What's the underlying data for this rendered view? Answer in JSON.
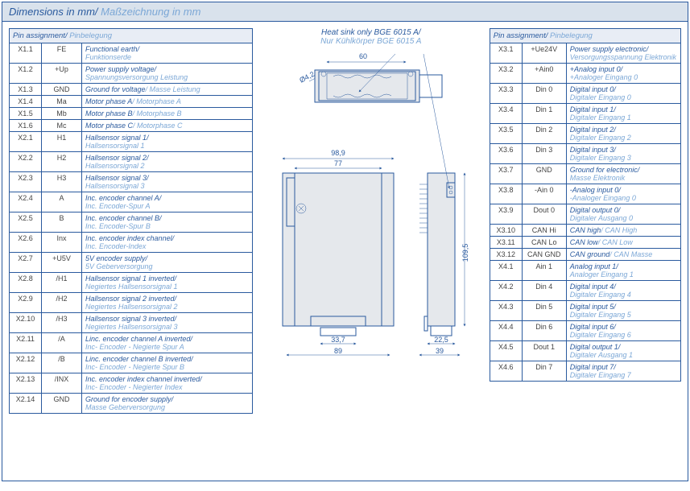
{
  "header": {
    "title_en": "Dimensions in mm",
    "title_de": "Maßzeichnung in mm"
  },
  "heatsink": {
    "en": "Heat sink only BGE 6015 A",
    "de": "Nur Kühlkörper BGE 6015 A"
  },
  "tableHeader": {
    "en": "Pin assignment",
    "de": "Pinbelegung"
  },
  "dimensions": {
    "top_width": "60",
    "top_dia": "Ø4,2",
    "front_width_outer": "98,9",
    "front_width_inner": "77",
    "front_bottom_inner": "33,7",
    "front_bottom_outer": "89",
    "side_height": "109,5",
    "side_width_inner": "22,5",
    "side_width_outer": "39"
  },
  "leftPins": [
    {
      "pin": "X1.1",
      "sig": "FE",
      "en": "Functional earth",
      "de": "Funktionserde"
    },
    {
      "pin": "X1.2",
      "sig": "+Up",
      "en": "Power supply voltage",
      "de": "Spannungsversorgung Leistung"
    },
    {
      "pin": "X1.3",
      "sig": "GND",
      "en": "Ground for voltage",
      "de": "Masse Leistung",
      "inline": true
    },
    {
      "pin": "X1.4",
      "sig": "Ma",
      "en": "Motor phase A",
      "de": "Motorphase A",
      "inline": true
    },
    {
      "pin": "X1.5",
      "sig": "Mb",
      "en": "Motor phase B",
      "de": "Motorphase B",
      "inline": true
    },
    {
      "pin": "X1.6",
      "sig": "Mc",
      "en": "Motor phase C",
      "de": "Motorphase C",
      "inline": true
    },
    {
      "pin": "X2.1",
      "sig": "H1",
      "en": "Hallsensor signal 1",
      "de": "Hallsensorsignal 1"
    },
    {
      "pin": "X2.2",
      "sig": "H2",
      "en": "Hallsensor signal 2",
      "de": "Hallsensorsignal 2"
    },
    {
      "pin": "X2.3",
      "sig": "H3",
      "en": "Hallsensor signal 3",
      "de": "Hallsensorsignal 3"
    },
    {
      "pin": "X2.4",
      "sig": "A",
      "en": "Inc. encoder channel A",
      "de": "Inc. Encoder-Spur A"
    },
    {
      "pin": "X2.5",
      "sig": "B",
      "en": "Inc. encoder channel B",
      "de": "Inc. Encoder-Spur B"
    },
    {
      "pin": "X2.6",
      "sig": "Inx",
      "en": "Inc. encoder index channel",
      "de": "Inc. Encoder-Index"
    },
    {
      "pin": "X2.7",
      "sig": "+U5V",
      "en": "5V encoder supply",
      "de": "5V Geberversorgung"
    },
    {
      "pin": "X2.8",
      "sig": "/H1",
      "en": "Hallsensor signal 1 inverted",
      "de": "Negiertes Hallsensorsignal 1"
    },
    {
      "pin": "X2.9",
      "sig": "/H2",
      "en": "Hallsensor signal 2 inverted",
      "de": "Negiertes Hallsensorsignal 2"
    },
    {
      "pin": "X2.10",
      "sig": "/H3",
      "en": "Hallsensor signal 3 inverted",
      "de": "Negiertes Hallsensorsignal 3"
    },
    {
      "pin": "X2.11",
      "sig": "/A",
      "en": "Linc. encoder channel A inverted",
      "de": "Inc- Encoder - Negierte Spur A"
    },
    {
      "pin": "X2.12",
      "sig": "/B",
      "en": "Linc. encoder channel B inverted",
      "de": "Inc- Encoder - Negierte Spur B"
    },
    {
      "pin": "X2.13",
      "sig": "/INX",
      "en": "Inc. encoder index channel inverted",
      "de": "Inc- Encoder - Negierter Index"
    },
    {
      "pin": "X2.14",
      "sig": "GND",
      "en": "Ground for encoder supply",
      "de": "Masse Geberversorgung"
    }
  ],
  "rightPins": [
    {
      "pin": "X3.1",
      "sig": "+Ue24V",
      "en": "Power supply electronic",
      "de": "Versorgungsspannung Elektronik"
    },
    {
      "pin": "X3.2",
      "sig": "+Ain0",
      "en": "+Analog input 0",
      "de": "+Analoger Eingang 0"
    },
    {
      "pin": "X3.3",
      "sig": "Din 0",
      "en": "Digital input 0",
      "de": "Digitaler Eingang 0"
    },
    {
      "pin": "X3.4",
      "sig": "Din 1",
      "en": "Digital input 1",
      "de": "Digitaler Eingang 1"
    },
    {
      "pin": "X3.5",
      "sig": "Din 2",
      "en": "Digital input 2",
      "de": "Digitaler Eingang 2"
    },
    {
      "pin": "X3.6",
      "sig": "Din 3",
      "en": "Digital input 3",
      "de": "Digitaler Eingang 3"
    },
    {
      "pin": "X3.7",
      "sig": "GND",
      "en": "Ground for electronic",
      "de": "Masse Elektronik"
    },
    {
      "pin": "X3.8",
      "sig": "-Ain 0",
      "en": "-Analog input 0",
      "de": "-Analoger Eingang 0"
    },
    {
      "pin": "X3.9",
      "sig": "Dout 0",
      "en": "Digital output 0",
      "de": "Digitaler Ausgang 0"
    },
    {
      "pin": "X3.10",
      "sig": "CAN Hi",
      "en": "CAN high",
      "de": "CAN High",
      "inline": true
    },
    {
      "pin": "X3.11",
      "sig": "CAN Lo",
      "en": "CAN low",
      "de": "CAN Low",
      "inline": true
    },
    {
      "pin": "X3.12",
      "sig": "CAN GND",
      "en": "CAN ground",
      "de": "CAN Masse",
      "inline": true
    },
    {
      "pin": "X4.1",
      "sig": "Ain 1",
      "en": "Analog input 1",
      "de": "Analoger Eingang 1"
    },
    {
      "pin": "X4.2",
      "sig": "Din 4",
      "en": "Digital input 4",
      "de": "Digitaler Eingang 4"
    },
    {
      "pin": "X4.3",
      "sig": "Din 5",
      "en": "Digital input 5",
      "de": "Digitaler Eingang 5"
    },
    {
      "pin": "X4.4",
      "sig": "Din 6",
      "en": "Digital input 6",
      "de": "Digitaler Eingang 6"
    },
    {
      "pin": "X4.5",
      "sig": "Dout 1",
      "en": "Digital output 1",
      "de": "Digitaler Ausgang 1"
    },
    {
      "pin": "X4.6",
      "sig": "Din 7",
      "en": "Digital input 7",
      "de": "Digitaler Eingang 7"
    }
  ],
  "colors": {
    "primary": "#2a5a9e",
    "secondary": "#7ba7d6",
    "header_bg": "#d9e2ec",
    "row_bg": "#e8edf5",
    "shape_fill": "#e5e8ec"
  }
}
